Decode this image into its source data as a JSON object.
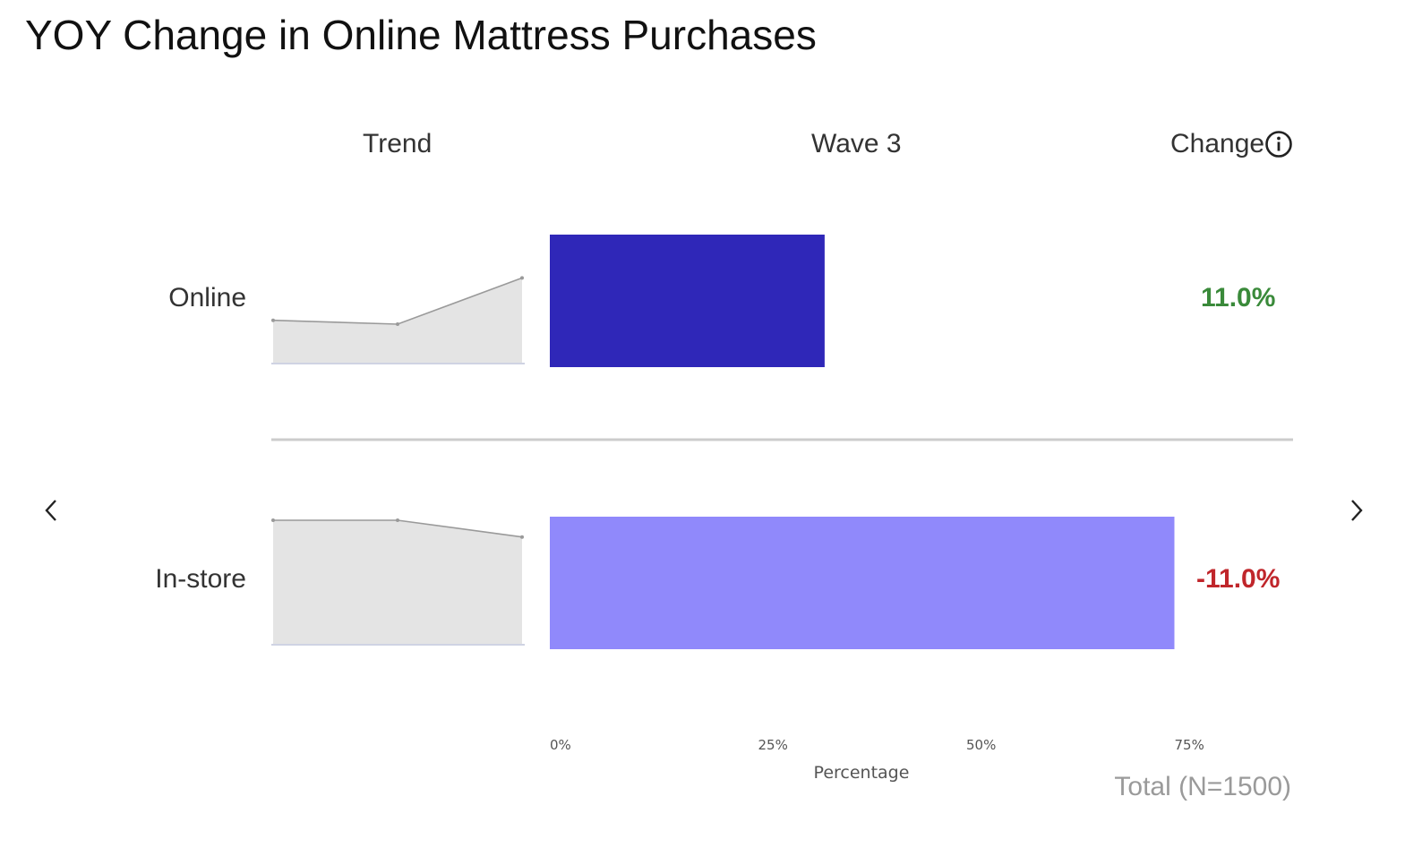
{
  "title": "YOY Change in Online Mattress Purchases",
  "columns": {
    "trend": "Trend",
    "wave": "Wave 3",
    "change": "Change"
  },
  "footer": {
    "total": "Total (N=1500)"
  },
  "chart_data": {
    "type": "bar",
    "orientation": "horizontal",
    "categories": [
      "Online",
      "In-store"
    ],
    "series": [
      {
        "name": "Wave 3",
        "values": [
          33,
          75
        ]
      }
    ],
    "bar_colors": [
      "#2f27b8",
      "#9089fb"
    ],
    "change": [
      "11.0%",
      "-11.0%"
    ],
    "change_colors": [
      "#3a8a3a",
      "#c0262b"
    ],
    "trend": [
      [
        22,
        21,
        33
      ],
      [
        86,
        86,
        75
      ]
    ],
    "xlabel": "Percentage",
    "ylabel": "",
    "xlim": [
      0,
      100
    ],
    "xticks": [
      0,
      25,
      50,
      75
    ],
    "xtick_labels": [
      "0%",
      "25%",
      "50%",
      "75%"
    ],
    "grid": false
  }
}
